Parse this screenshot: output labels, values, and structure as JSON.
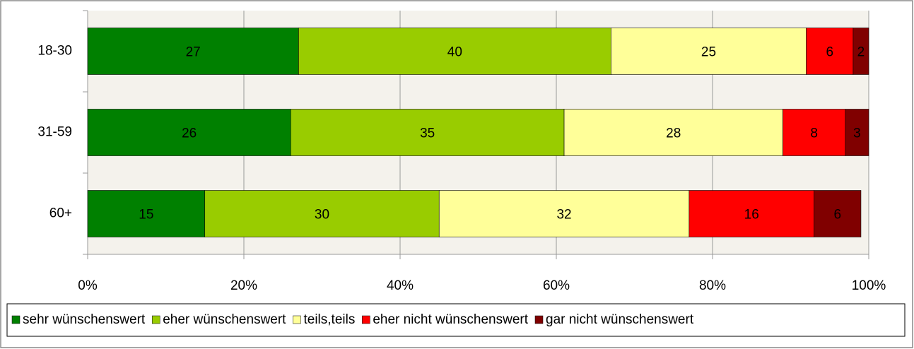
{
  "chart_data": {
    "type": "stacked-bar-horizontal",
    "categories": [
      "18-30",
      "31-59",
      "60+"
    ],
    "series": [
      {
        "name": "sehr wünschenswert",
        "color": "#008000",
        "values": [
          27,
          26,
          15
        ]
      },
      {
        "name": "eher wünschenswert",
        "color": "#99cc00",
        "values": [
          40,
          35,
          30
        ]
      },
      {
        "name": "teils,teils",
        "color": "#ffff99",
        "values": [
          25,
          28,
          32
        ]
      },
      {
        "name": "eher nicht wünschenswert",
        "color": "#ff0000",
        "values": [
          6,
          8,
          16
        ]
      },
      {
        "name": "gar nicht wünschenswert",
        "color": "#800000",
        "values": [
          2,
          3,
          6
        ]
      }
    ],
    "xlim": [
      0,
      100
    ],
    "xticks": [
      {
        "value": 0,
        "label": "0%"
      },
      {
        "value": 20,
        "label": "20%"
      },
      {
        "value": 40,
        "label": "40%"
      },
      {
        "value": 60,
        "label": "60%"
      },
      {
        "value": 80,
        "label": "80%"
      },
      {
        "value": 100,
        "label": "100%"
      }
    ],
    "grid": true,
    "legend": "bottom"
  }
}
